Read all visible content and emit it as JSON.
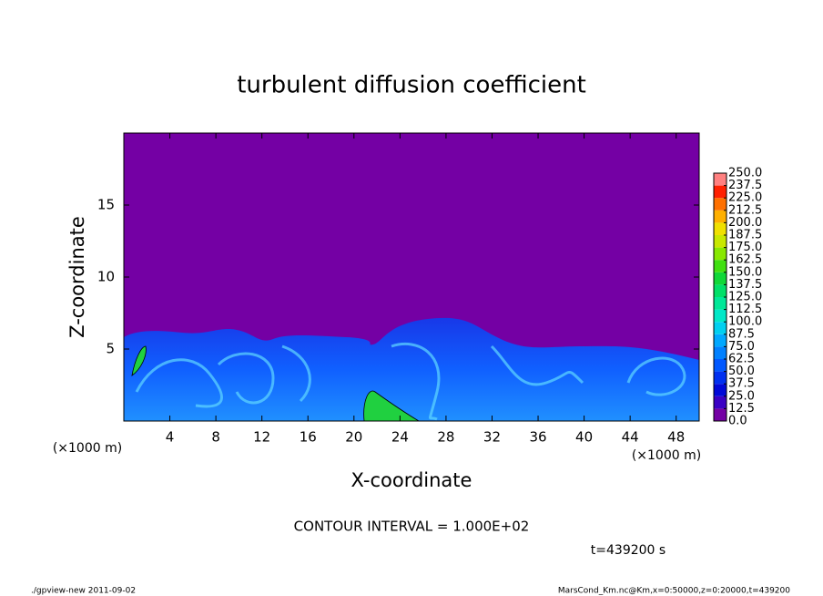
{
  "chart_data": {
    "type": "contour",
    "title": "turbulent diffusion coefficient",
    "xlabel": "X-coordinate",
    "ylabel": "Z-coordinate",
    "xunit": "(×1000 m)",
    "yunit": "(×1000 m)",
    "xlim": [
      0,
      50
    ],
    "xticks": [
      4,
      8,
      12,
      16,
      20,
      24,
      28,
      32,
      36,
      40,
      44,
      48
    ],
    "ylim": [
      0,
      20
    ],
    "yticks": [
      5,
      10,
      15
    ],
    "colorbar": {
      "levels": [
        {
          "value": 0,
          "label": "0.0"
        },
        12.5,
        {
          "value": 25,
          "label": "25.0"
        },
        37.5,
        {
          "value": 50,
          "label": "50.0"
        },
        62.5,
        {
          "value": 75,
          "label": "75.0"
        },
        87.5,
        {
          "value": 100,
          "label": "100.0"
        },
        112.5,
        {
          "value": 125,
          "label": "125.0"
        },
        137.5,
        {
          "value": 150,
          "label": "150.0"
        },
        162.5,
        {
          "value": 175,
          "label": "175.0"
        },
        187.5,
        {
          "value": 200,
          "label": "200.0"
        },
        212.5,
        {
          "value": 225,
          "label": "225.0"
        },
        237.5,
        {
          "value": 250,
          "label": "250.0"
        }
      ],
      "colors": [
        "#7400a4",
        "#3a00c4",
        "#0008d8",
        "#0030f0",
        "#0058ff",
        "#0080ff",
        "#00a8ff",
        "#00d0f0",
        "#00e8c8",
        "#00e898",
        "#00e068",
        "#10d838",
        "#40e010",
        "#88e800",
        "#c8e800",
        "#f0e000",
        "#ffb000",
        "#ff7000",
        "#ff2000",
        "#ff8080"
      ]
    },
    "contour_interval": "CONTOUR INTERVAL = 1.000E+02",
    "time_label": "t=439200 s",
    "footer_left": "./gpview-new  2011-09-02",
    "footer_right": "MarsCond_Km.nc@Km,x=0:50000,z=0:20000,t=439200"
  }
}
